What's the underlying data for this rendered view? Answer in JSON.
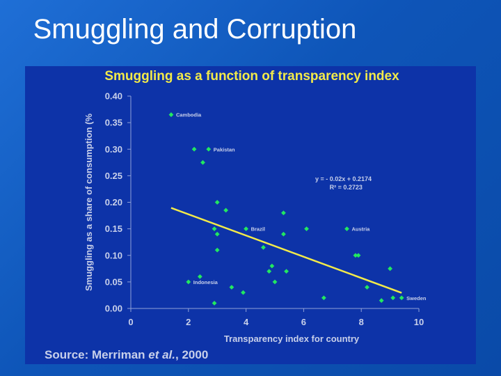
{
  "slide": {
    "title": "Smuggling and Corruption"
  },
  "colors": {
    "background": "#1560c8",
    "panel": "#0d33a8",
    "title_text": "#ffffff",
    "chart_title": "#f2ea4a",
    "points": "#22e860",
    "trendline": "#f2ea4a",
    "axis_text": "#c8d0ea"
  },
  "chart_data": {
    "type": "scatter",
    "title": "Smuggling as a function of transparency index",
    "xlabel": "Transparency index for country",
    "ylabel": "Smuggling as a share of consumption (%",
    "xlim": [
      0,
      10
    ],
    "ylim": [
      0,
      0.4
    ],
    "xticks": [
      "0",
      "2",
      "4",
      "6",
      "8",
      "10"
    ],
    "yticks": [
      "0.00",
      "0.05",
      "0.10",
      "0.15",
      "0.20",
      "0.25",
      "0.30",
      "0.35",
      "0.40"
    ],
    "grid": false,
    "points": [
      {
        "x": 1.4,
        "y": 0.365,
        "label": "Cambodia"
      },
      {
        "x": 2.2,
        "y": 0.3
      },
      {
        "x": 2.7,
        "y": 0.3,
        "label": "Pakistan"
      },
      {
        "x": 2.5,
        "y": 0.275
      },
      {
        "x": 3.0,
        "y": 0.2
      },
      {
        "x": 3.3,
        "y": 0.185
      },
      {
        "x": 5.3,
        "y": 0.18
      },
      {
        "x": 2.9,
        "y": 0.15
      },
      {
        "x": 4.0,
        "y": 0.15,
        "label": "Brazil"
      },
      {
        "x": 6.1,
        "y": 0.15
      },
      {
        "x": 7.5,
        "y": 0.15,
        "label": "Austria"
      },
      {
        "x": 3.0,
        "y": 0.14
      },
      {
        "x": 5.3,
        "y": 0.14
      },
      {
        "x": 4.6,
        "y": 0.115
      },
      {
        "x": 3.0,
        "y": 0.11
      },
      {
        "x": 7.8,
        "y": 0.1
      },
      {
        "x": 7.9,
        "y": 0.1
      },
      {
        "x": 4.9,
        "y": 0.08
      },
      {
        "x": 4.8,
        "y": 0.07
      },
      {
        "x": 5.4,
        "y": 0.07
      },
      {
        "x": 9.0,
        "y": 0.075
      },
      {
        "x": 2.4,
        "y": 0.06
      },
      {
        "x": 2.0,
        "y": 0.05,
        "label": "Indonesia"
      },
      {
        "x": 5.0,
        "y": 0.05
      },
      {
        "x": 3.5,
        "y": 0.04
      },
      {
        "x": 8.2,
        "y": 0.04
      },
      {
        "x": 3.9,
        "y": 0.03
      },
      {
        "x": 6.7,
        "y": 0.02
      },
      {
        "x": 9.1,
        "y": 0.02
      },
      {
        "x": 9.4,
        "y": 0.02,
        "label": "Sweden"
      },
      {
        "x": 8.7,
        "y": 0.015
      },
      {
        "x": 2.9,
        "y": 0.01
      }
    ],
    "trendline": {
      "slope": -0.02,
      "intercept": 0.2174,
      "x_range": [
        1.4,
        9.4
      ]
    },
    "annotations": {
      "equation": "y = - 0.02x + 0.2174",
      "r_squared": "R² = 0.2723"
    },
    "source": {
      "prefix": "Source: Merriman ",
      "italic": "et al.",
      "suffix": ", 2000"
    }
  }
}
